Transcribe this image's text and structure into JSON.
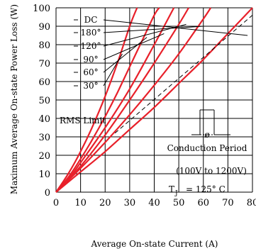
{
  "chart_data": {
    "type": "line",
    "xlabel": "Average On-state Current (A)",
    "ylabel": "Maximum Average On-state Power Loss (W)",
    "xlim": [
      0,
      80
    ],
    "ylim": [
      0,
      100
    ],
    "x_ticks": [
      0,
      10,
      20,
      30,
      40,
      50,
      60,
      70,
      80
    ],
    "y_ticks": [
      0,
      10,
      20,
      30,
      40,
      50,
      60,
      70,
      80,
      90,
      100
    ],
    "grid": true,
    "series": [
      {
        "name": "30°",
        "x": [
          0,
          5,
          10,
          15,
          20,
          25,
          30,
          33
        ],
        "y": [
          0,
          10,
          22,
          36,
          52,
          70,
          90,
          100
        ]
      },
      {
        "name": "60°",
        "x": [
          0,
          5,
          10,
          15,
          20,
          25,
          30,
          35,
          40,
          42
        ],
        "y": [
          0,
          8,
          18,
          29,
          41,
          54,
          68,
          82,
          96,
          100
        ]
      },
      {
        "name": "90°",
        "x": [
          0,
          5,
          10,
          20,
          30,
          40,
          48
        ],
        "y": [
          0,
          7,
          16,
          35,
          56,
          80,
          100
        ]
      },
      {
        "name": "120°",
        "x": [
          0,
          5,
          10,
          20,
          30,
          40,
          50,
          54
        ],
        "y": [
          0,
          7,
          14,
          31,
          50,
          70,
          91,
          100
        ]
      },
      {
        "name": "180°",
        "x": [
          0,
          10,
          20,
          30,
          40,
          50,
          60,
          63
        ],
        "y": [
          0,
          13,
          27,
          42,
          58,
          75,
          94,
          100
        ]
      },
      {
        "name": "DC",
        "x": [
          0,
          10,
          20,
          30,
          40,
          50,
          60,
          70,
          80
        ],
        "y": [
          0,
          11,
          22,
          34,
          46,
          59,
          72,
          86,
          100
        ]
      }
    ],
    "rms_limit": {
      "label": "RMS Limit",
      "x": [
        24,
        80
      ],
      "y": [
        32,
        96
      ]
    },
    "annotations": {
      "conduction": "Conduction Period",
      "angle_symbol": "ø",
      "voltage": "(100V to 1200V)",
      "tj_t": "T",
      "tj_sub": "J",
      "tj_value": "= 125° C"
    },
    "colors": {
      "curve": "#e8202a",
      "grid": "#000000",
      "dashed": "#000000"
    }
  }
}
